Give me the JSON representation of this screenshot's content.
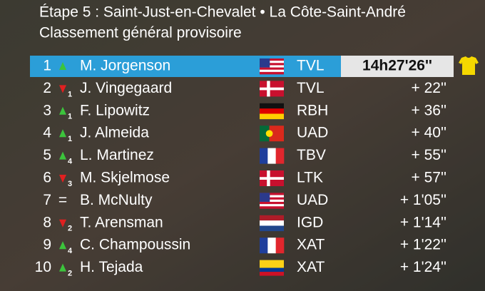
{
  "header": {
    "title": "Étape 5 : Saint-Just-en-Chevalet •  La Côte-Saint-André",
    "subtitle": "Classement général provisoire"
  },
  "rows": [
    {
      "rank": "1",
      "trend": "up",
      "name": "M. Jorgenson",
      "flag": "us",
      "team": "TVL",
      "time": "14h27'26''",
      "leader": true
    },
    {
      "rank": "2",
      "trend": "down",
      "change": "1",
      "name": "J. Vingegaard",
      "flag": "dk",
      "team": "TVL",
      "time": "+  22''"
    },
    {
      "rank": "3",
      "trend": "up",
      "change": "1",
      "name": "F. Lipowitz",
      "flag": "de",
      "team": "RBH",
      "time": "+  36''"
    },
    {
      "rank": "4",
      "trend": "up",
      "change": "1",
      "name": "J. Almeida",
      "flag": "pt",
      "team": "UAD",
      "time": "+  40''"
    },
    {
      "rank": "5",
      "trend": "up",
      "change": "4",
      "name": "L. Martinez",
      "flag": "fr",
      "team": "TBV",
      "time": "+  55''"
    },
    {
      "rank": "6",
      "trend": "down",
      "change": "3",
      "name": "M. Skjelmose",
      "flag": "dk",
      "team": "LTK",
      "time": "+  57''"
    },
    {
      "rank": "7",
      "trend": "=",
      "name": "B. McNulty",
      "flag": "us",
      "team": "UAD",
      "time": "+ 1'05''"
    },
    {
      "rank": "8",
      "trend": "down",
      "change": "2",
      "name": "T. Arensman",
      "flag": "nl",
      "team": "IGD",
      "time": "+ 1'14''"
    },
    {
      "rank": "9",
      "trend": "up",
      "change": "4",
      "name": "C. Champoussin",
      "flag": "fr",
      "team": "XAT",
      "time": "+ 1'22''"
    },
    {
      "rank": "10",
      "trend": "up",
      "change": "2",
      "name": "H. Tejada",
      "flag": "co",
      "team": "XAT",
      "time": "+ 1'24''"
    }
  ]
}
